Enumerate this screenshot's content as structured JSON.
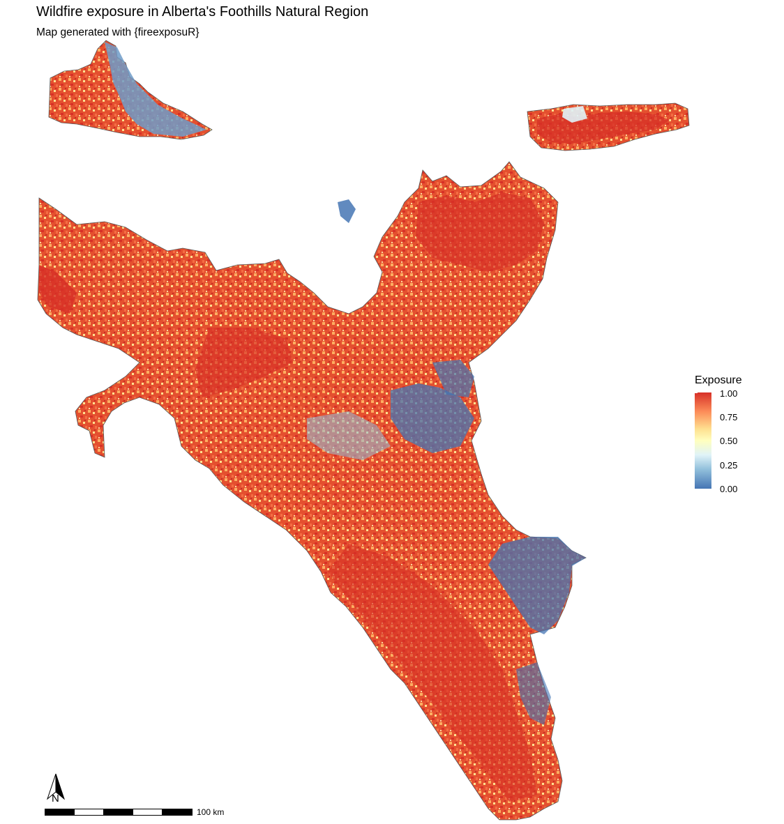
{
  "title": "Wildfire exposure in Alberta's Foothills Natural Region",
  "subtitle": "Map generated with {fireexposuR}",
  "legend": {
    "title": "Exposure",
    "ticks": [
      "1.00",
      "0.75",
      "0.50",
      "0.25",
      "0.00"
    ],
    "colors": [
      "#d73027",
      "#fc8d59",
      "#ffffbf",
      "#91bfdb",
      "#4575b4"
    ]
  },
  "scale_bar": {
    "label": "100 km"
  },
  "north_arrow": {
    "label": "N"
  },
  "colors": {
    "high": "#d73027",
    "mid_high": "#fc8d59",
    "mid": "#fee090",
    "low_mid": "#e0f3f8",
    "low": "#4575b4",
    "outline": "#555555"
  }
}
